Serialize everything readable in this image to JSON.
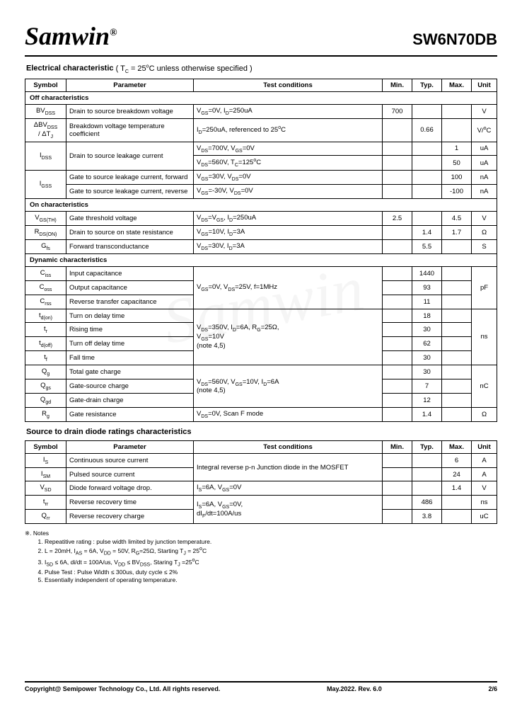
{
  "header": {
    "brand": "Samwin",
    "reg": "®",
    "part": "SW6N70DB"
  },
  "sec1": {
    "title": "Electrical characteristic",
    "cond": " ( T",
    "cond_sub": "C",
    "cond2": " = 25",
    "cond3": "C unless otherwise specified )"
  },
  "hdr": {
    "symbol": "Symbol",
    "param": "Parameter",
    "test": "Test conditions",
    "min": "Min.",
    "typ": "Typ.",
    "max": "Max.",
    "unit": "Unit"
  },
  "sub": {
    "off": "Off characteristics",
    "on": "On characteristics",
    "dyn": "Dynamic characteristics"
  },
  "off": {
    "r1": {
      "p": "Drain to source breakdown voltage",
      "min": "700",
      "unit": "V"
    },
    "r2": {
      "p": "Breakdown voltage temperature coefficient",
      "typ": "0.66",
      "unit": "V/°C"
    },
    "r3": {
      "p": "Drain to source leakage current",
      "max": "1",
      "unit": "uA"
    },
    "r3b": {
      "max": "50",
      "unit": "uA"
    },
    "r4": {
      "p": "Gate to source leakage current, forward",
      "max": "100",
      "unit": "nA"
    },
    "r5": {
      "p": "Gate to source leakage current, reverse",
      "max": "-100",
      "unit": "nA"
    }
  },
  "on": {
    "r1": {
      "p": "Gate threshold voltage",
      "min": "2.5",
      "max": "4.5",
      "unit": "V"
    },
    "r2": {
      "p": "Drain to source on state resistance",
      "typ": "1.4",
      "max": "1.7",
      "unit": "Ω"
    },
    "r3": {
      "p": "Forward transconductance",
      "typ": "5.5",
      "unit": "S"
    }
  },
  "dyn": {
    "r1": {
      "p": "Input capacitance",
      "typ": "1440"
    },
    "r2": {
      "p": "Output capacitance",
      "typ": "93"
    },
    "r3": {
      "p": "Reverse transfer capacitance",
      "typ": "11"
    },
    "unit_cap": "pF",
    "r4": {
      "p": "Turn on delay time",
      "typ": "18"
    },
    "r5": {
      "p": "Rising time",
      "typ": "30"
    },
    "r6": {
      "p": "Turn off delay time",
      "typ": "62"
    },
    "r7": {
      "p": "Fall time",
      "typ": "30"
    },
    "unit_time": "ns",
    "r8": {
      "p": "Total gate charge",
      "typ": "30"
    },
    "r9": {
      "p": "Gate-source charge",
      "typ": "7"
    },
    "r10": {
      "p": "Gate-drain charge",
      "typ": "12"
    },
    "unit_charge": "nC",
    "r11": {
      "p": "Gate resistance",
      "typ": "1.4",
      "unit": "Ω"
    }
  },
  "sec2": {
    "title": "Source to drain diode ratings characteristics"
  },
  "dio": {
    "r1": {
      "p": "Continuous source current",
      "max": "6",
      "unit": "A"
    },
    "r2": {
      "p": "Pulsed source current",
      "max": "24",
      "unit": "A"
    },
    "r3": {
      "p": "Diode forward voltage drop.",
      "max": "1.4",
      "unit": "V"
    },
    "r4": {
      "p": "Reverse recovery time",
      "typ": "486",
      "unit": "ns"
    },
    "r5": {
      "p": "Reverse recovery charge",
      "typ": "3.8",
      "unit": "uC"
    }
  },
  "notes": {
    "hdr": "※. Notes",
    "n1": "Repeatitive rating : pulse width limited by junction temperature.",
    "n4": "Pulse Test : Pulse Width ≤ 300us, duty cycle ≤ 2%",
    "n5": "Essentially independent of operating temperature."
  },
  "footer": {
    "copy": "Copyright@ Semipower Technology Co., Ltd. All rights reserved.",
    "rev": "May.2022. Rev. 6.0",
    "page": "2/6"
  }
}
